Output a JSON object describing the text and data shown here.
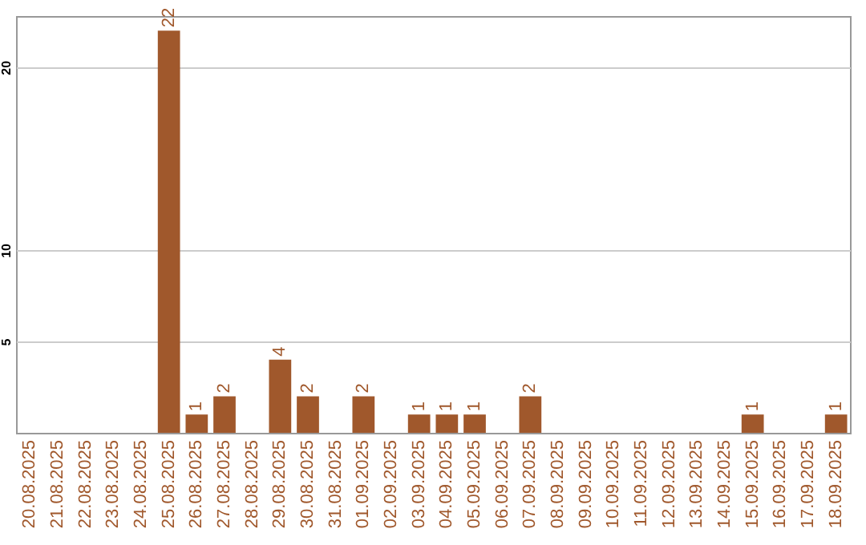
{
  "chart_data": {
    "type": "bar",
    "categories": [
      "20.08.2025",
      "21.08.2025",
      "22.08.2025",
      "23.08.2025",
      "24.08.2025",
      "25.08.2025",
      "26.08.2025",
      "27.08.2025",
      "28.08.2025",
      "29.08.2025",
      "30.08.2025",
      "31.08.2025",
      "01.09.2025",
      "02.09.2025",
      "03.09.2025",
      "04.09.2025",
      "05.09.2025",
      "06.09.2025",
      "07.09.2025",
      "08.09.2025",
      "09.09.2025",
      "10.09.2025",
      "11.09.2025",
      "12.09.2025",
      "13.09.2025",
      "14.09.2025",
      "15.09.2025",
      "16.09.2025",
      "17.09.2025",
      "18.09.2025"
    ],
    "values": [
      0,
      0,
      0,
      0,
      0,
      22,
      1,
      2,
      0,
      4,
      2,
      0,
      2,
      0,
      1,
      1,
      1,
      0,
      2,
      0,
      0,
      0,
      0,
      0,
      0,
      0,
      1,
      0,
      0,
      1
    ],
    "value_labels": [
      null,
      null,
      null,
      null,
      null,
      "22",
      "1",
      "2",
      null,
      "4",
      "2",
      null,
      "2",
      null,
      "1",
      "1",
      "1",
      null,
      "2",
      null,
      null,
      null,
      null,
      null,
      null,
      null,
      "1",
      null,
      null,
      "1"
    ],
    "color": "#a0582c",
    "ylim": [
      0,
      22.8
    ],
    "yticks": [
      5,
      10,
      20
    ],
    "grid": "y"
  }
}
